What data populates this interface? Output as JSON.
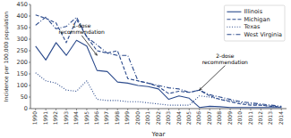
{
  "chart_data": {
    "type": "line",
    "xlabel": "Year",
    "ylabel": "Incidence per 100,000 population",
    "x": [
      1990,
      1991,
      1992,
      1993,
      1994,
      1995,
      1996,
      1997,
      1998,
      1999,
      2000,
      2001,
      2002,
      2003,
      2004,
      2005,
      2006,
      2007,
      2008,
      2009,
      2010,
      2011,
      2012,
      2013,
      2014
    ],
    "series": [
      {
        "name": "Illinois",
        "color": "#2b4a8c",
        "line_style": "solid",
        "values": [
          270,
          210,
          285,
          230,
          295,
          270,
          165,
          160,
          115,
          110,
          100,
          95,
          85,
          40,
          55,
          45,
          5,
          10,
          8,
          5,
          5,
          5,
          5,
          5,
          5
        ]
      },
      {
        "name": "Michigan",
        "color": "#2b4a8c",
        "line_style": "dashed",
        "values": [
          405,
          390,
          370,
          285,
          385,
          310,
          250,
          240,
          250,
          130,
          120,
          110,
          95,
          65,
          75,
          70,
          80,
          55,
          40,
          30,
          20,
          15,
          15,
          10,
          8
        ]
      },
      {
        "name": "Texas",
        "color": "#2b4a8c",
        "line_style": "dotted",
        "values": [
          155,
          120,
          110,
          80,
          75,
          120,
          40,
          35,
          35,
          30,
          30,
          25,
          20,
          15,
          15,
          15,
          55,
          50,
          40,
          35,
          25,
          20,
          15,
          10,
          5
        ]
      },
      {
        "name": "West Virginia",
        "color": "#2b4a8c",
        "line_style": "dashdot",
        "values": [
          360,
          395,
          345,
          355,
          395,
          310,
          275,
          240,
          230,
          230,
          120,
          110,
          100,
          90,
          85,
          70,
          80,
          60,
          50,
          40,
          30,
          25,
          20,
          15,
          10
        ]
      }
    ],
    "annotations": [
      {
        "text": "1-dose\nrecommendation",
        "x": 1996,
        "y": 230,
        "text_x": 1994.5,
        "text_y": 320
      },
      {
        "text": "2-dose\nrecommendation",
        "x": 2006,
        "y": 80,
        "text_x": 2008.5,
        "text_y": 190
      }
    ],
    "xlim": [
      1989.5,
      2014.5
    ],
    "xticks": [
      1990,
      1991,
      1992,
      1993,
      1994,
      1995,
      1996,
      1997,
      1998,
      1999,
      2000,
      2001,
      2002,
      2003,
      2004,
      2005,
      2006,
      2007,
      2008,
      2009,
      2010,
      2011,
      2012,
      2013,
      2014
    ],
    "ylim": [
      0,
      450
    ],
    "yticks": [
      0,
      50,
      100,
      150,
      200,
      250,
      300,
      350,
      400,
      450
    ],
    "grid": false,
    "legend": "upper right"
  }
}
